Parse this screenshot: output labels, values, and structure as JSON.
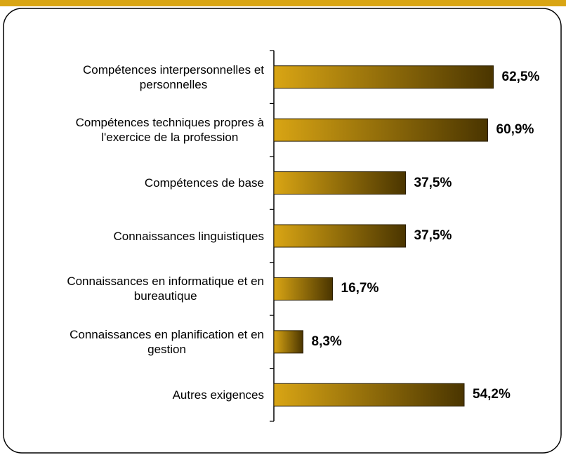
{
  "chart_data": {
    "type": "barh",
    "categories": [
      "Compétences interpersonnelles et\npersonnelles",
      "Compétences techniques propres à\nl'exercice de la profession",
      "Compétences de base",
      "Connaissances linguistiques",
      "Connaissances en informatique et en\nbureautique",
      "Connaissances en planification et en\ngestion",
      "Autres exigences"
    ],
    "values": [
      62.5,
      60.9,
      37.5,
      37.5,
      16.7,
      8.3,
      54.2
    ],
    "value_labels": [
      "62,5%",
      "60,9%",
      "37,5%",
      "37,5%",
      "16,7%",
      "8,3%",
      "54,2%"
    ],
    "color": "#d9a514"
  }
}
